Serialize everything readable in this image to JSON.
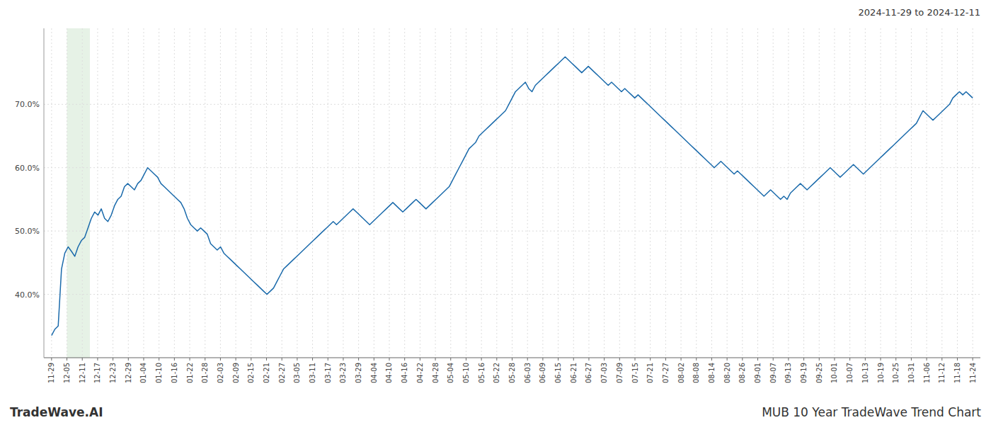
{
  "chart_data": {
    "type": "line",
    "title": "MUB 10 Year TradeWave Trend Chart",
    "subtitle": "2024-11-29 to 2024-12-11",
    "annotations": [
      "TradeWave.AI"
    ],
    "color": "#1a6aab",
    "grid": true,
    "shade_x": [
      1,
      2.5
    ],
    "shade_color": "#d6ead6",
    "ylim": [
      30.0,
      82.0
    ],
    "yticks": [
      {
        "value": 40.0,
        "label": "40.0%"
      },
      {
        "value": 50.0,
        "label": "50.0%"
      },
      {
        "value": 60.0,
        "label": "60.0%"
      },
      {
        "value": 70.0,
        "label": "70.0%"
      }
    ],
    "xlim": [
      -0.5,
      60.5
    ],
    "xticks": [
      {
        "value": 0,
        "label": "11-29"
      },
      {
        "value": 1,
        "label": "12-05"
      },
      {
        "value": 2,
        "label": "12-11"
      },
      {
        "value": 3,
        "label": "12-17"
      },
      {
        "value": 4,
        "label": "12-23"
      },
      {
        "value": 5,
        "label": "12-29"
      },
      {
        "value": 6,
        "label": "01-04"
      },
      {
        "value": 7,
        "label": "01-10"
      },
      {
        "value": 8,
        "label": "01-16"
      },
      {
        "value": 9,
        "label": "01-22"
      },
      {
        "value": 10,
        "label": "01-28"
      },
      {
        "value": 11,
        "label": "02-03"
      },
      {
        "value": 12,
        "label": "02-09"
      },
      {
        "value": 13,
        "label": "02-15"
      },
      {
        "value": 14,
        "label": "02-21"
      },
      {
        "value": 15,
        "label": "02-27"
      },
      {
        "value": 16,
        "label": "03-05"
      },
      {
        "value": 17,
        "label": "03-11"
      },
      {
        "value": 18,
        "label": "03-17"
      },
      {
        "value": 19,
        "label": "03-23"
      },
      {
        "value": 20,
        "label": "03-29"
      },
      {
        "value": 21,
        "label": "04-04"
      },
      {
        "value": 22,
        "label": "04-10"
      },
      {
        "value": 23,
        "label": "04-16"
      },
      {
        "value": 24,
        "label": "04-22"
      },
      {
        "value": 25,
        "label": "04-28"
      },
      {
        "value": 26,
        "label": "05-04"
      },
      {
        "value": 27,
        "label": "05-10"
      },
      {
        "value": 28,
        "label": "05-16"
      },
      {
        "value": 29,
        "label": "05-22"
      },
      {
        "value": 30,
        "label": "05-28"
      },
      {
        "value": 31,
        "label": "06-03"
      },
      {
        "value": 32,
        "label": "06-09"
      },
      {
        "value": 33,
        "label": "06-15"
      },
      {
        "value": 34,
        "label": "06-21"
      },
      {
        "value": 35,
        "label": "06-27"
      },
      {
        "value": 36,
        "label": "07-03"
      },
      {
        "value": 37,
        "label": "07-09"
      },
      {
        "value": 38,
        "label": "07-15"
      },
      {
        "value": 39,
        "label": "07-21"
      },
      {
        "value": 40,
        "label": "07-27"
      },
      {
        "value": 41,
        "label": "08-02"
      },
      {
        "value": 42,
        "label": "08-08"
      },
      {
        "value": 43,
        "label": "08-14"
      },
      {
        "value": 44,
        "label": "08-20"
      },
      {
        "value": 45,
        "label": "08-26"
      },
      {
        "value": 46,
        "label": "09-01"
      },
      {
        "value": 47,
        "label": "09-07"
      },
      {
        "value": 48,
        "label": "09-13"
      },
      {
        "value": 49,
        "label": "09-19"
      },
      {
        "value": 50,
        "label": "09-25"
      },
      {
        "value": 51,
        "label": "10-01"
      },
      {
        "value": 52,
        "label": "10-07"
      },
      {
        "value": 53,
        "label": "10-13"
      },
      {
        "value": 54,
        "label": "10-19"
      },
      {
        "value": 55,
        "label": "10-25"
      },
      {
        "value": 56,
        "label": "10-31"
      },
      {
        "value": 57,
        "label": "11-06"
      },
      {
        "value": 58,
        "label": "11-12"
      },
      {
        "value": 59,
        "label": "11-18"
      },
      {
        "value": 60,
        "label": "11-24"
      }
    ],
    "values": [
      33.5,
      34.5,
      35.0,
      44.0,
      46.5,
      47.5,
      46.8,
      46.0,
      47.5,
      48.5,
      49.0,
      50.5,
      52.0,
      53.0,
      52.5,
      53.5,
      52.0,
      51.5,
      52.5,
      54.0,
      55.0,
      55.5,
      57.0,
      57.5,
      57.0,
      56.5,
      57.5,
      58.0,
      59.0,
      60.0,
      59.5,
      59.0,
      58.5,
      57.5,
      57.0,
      56.5,
      56.0,
      55.5,
      55.0,
      54.5,
      53.5,
      52.0,
      51.0,
      50.5,
      50.0,
      50.5,
      50.0,
      49.5,
      48.0,
      47.5,
      47.0,
      47.5,
      46.5,
      46.0,
      45.5,
      45.0,
      44.5,
      44.0,
      43.5,
      43.0,
      42.5,
      42.0,
      41.5,
      41.0,
      40.5,
      40.0,
      40.5,
      41.0,
      42.0,
      43.0,
      44.0,
      44.5,
      45.0,
      45.5,
      46.0,
      46.5,
      47.0,
      47.5,
      48.0,
      48.5,
      49.0,
      49.5,
      50.0,
      50.5,
      51.0,
      51.5,
      51.0,
      51.5,
      52.0,
      52.5,
      53.0,
      53.5,
      53.0,
      52.5,
      52.0,
      51.5,
      51.0,
      51.5,
      52.0,
      52.5,
      53.0,
      53.5,
      54.0,
      54.5,
      54.0,
      53.5,
      53.0,
      53.5,
      54.0,
      54.5,
      55.0,
      54.5,
      54.0,
      53.5,
      54.0,
      54.5,
      55.0,
      55.5,
      56.0,
      56.5,
      57.0,
      58.0,
      59.0,
      60.0,
      61.0,
      62.0,
      63.0,
      63.5,
      64.0,
      65.0,
      65.5,
      66.0,
      66.5,
      67.0,
      67.5,
      68.0,
      68.5,
      69.0,
      70.0,
      71.0,
      72.0,
      72.5,
      73.0,
      73.5,
      72.5,
      72.0,
      73.0,
      73.5,
      74.0,
      74.5,
      75.0,
      75.5,
      76.0,
      76.5,
      77.0,
      77.5,
      77.0,
      76.5,
      76.0,
      75.5,
      75.0,
      75.5,
      76.0,
      75.5,
      75.0,
      74.5,
      74.0,
      73.5,
      73.0,
      73.5,
      73.0,
      72.5,
      72.0,
      72.5,
      72.0,
      71.5,
      71.0,
      71.5,
      71.0,
      70.5,
      70.0,
      69.5,
      69.0,
      68.5,
      68.0,
      67.5,
      67.0,
      66.5,
      66.0,
      65.5,
      65.0,
      64.5,
      64.0,
      63.5,
      63.0,
      62.5,
      62.0,
      61.5,
      61.0,
      60.5,
      60.0,
      60.5,
      61.0,
      60.5,
      60.0,
      59.5,
      59.0,
      59.5,
      59.0,
      58.5,
      58.0,
      57.5,
      57.0,
      56.5,
      56.0,
      55.5,
      56.0,
      56.5,
      56.0,
      55.5,
      55.0,
      55.5,
      55.0,
      56.0,
      56.5,
      57.0,
      57.5,
      57.0,
      56.5,
      57.0,
      57.5,
      58.0,
      58.5,
      59.0,
      59.5,
      60.0,
      59.5,
      59.0,
      58.5,
      59.0,
      59.5,
      60.0,
      60.5,
      60.0,
      59.5,
      59.0,
      59.5,
      60.0,
      60.5,
      61.0,
      61.5,
      62.0,
      62.5,
      63.0,
      63.5,
      64.0,
      64.5,
      65.0,
      65.5,
      66.0,
      66.5,
      67.0,
      68.0,
      69.0,
      68.5,
      68.0,
      67.5,
      68.0,
      68.5,
      69.0,
      69.5,
      70.0,
      71.0,
      71.5,
      72.0,
      71.5,
      72.0,
      71.5,
      71.0
    ]
  }
}
